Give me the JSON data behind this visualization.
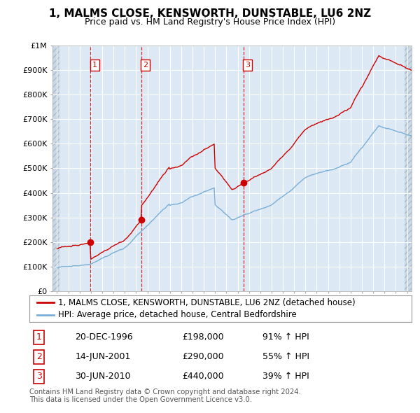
{
  "title": "1, MALMS CLOSE, KENSWORTH, DUNSTABLE, LU6 2NZ",
  "subtitle": "Price paid vs. HM Land Registry's House Price Index (HPI)",
  "ylabel_ticks": [
    "£0",
    "£100K",
    "£200K",
    "£300K",
    "£400K",
    "£500K",
    "£600K",
    "£700K",
    "£800K",
    "£900K",
    "£1M"
  ],
  "ytick_values": [
    0,
    100000,
    200000,
    300000,
    400000,
    500000,
    600000,
    700000,
    800000,
    900000,
    1000000
  ],
  "xlim_start": 1993.6,
  "xlim_end": 2025.4,
  "ylim_min": 0,
  "ylim_max": 1000000,
  "sale_color": "#cc0000",
  "hpi_color": "#7aaed6",
  "sale_label": "1, MALMS CLOSE, KENSWORTH, DUNSTABLE, LU6 2NZ (detached house)",
  "hpi_label": "HPI: Average price, detached house, Central Bedfordshire",
  "transactions": [
    {
      "num": 1,
      "date_x": 1996.97,
      "price": 198000,
      "label": "1",
      "date_str": "20-DEC-1996",
      "price_str": "£198,000",
      "hpi_str": "91% ↑ HPI"
    },
    {
      "num": 2,
      "date_x": 2001.45,
      "price": 290000,
      "label": "2",
      "date_str": "14-JUN-2001",
      "price_str": "£290,000",
      "hpi_str": "55% ↑ HPI"
    },
    {
      "num": 3,
      "date_x": 2010.5,
      "price": 440000,
      "label": "3",
      "date_str": "30-JUN-2010",
      "price_str": "£440,000",
      "hpi_str": "39% ↑ HPI"
    }
  ],
  "footer_line1": "Contains HM Land Registry data © Crown copyright and database right 2024.",
  "footer_line2": "This data is licensed under the Open Government Licence v3.0.",
  "background_color": "#ffffff",
  "plot_bg_color": "#dce9f5",
  "grid_color": "#ffffff",
  "title_fontsize": 11,
  "subtitle_fontsize": 9,
  "tick_fontsize": 8,
  "legend_fontsize": 8.5,
  "table_fontsize": 9
}
